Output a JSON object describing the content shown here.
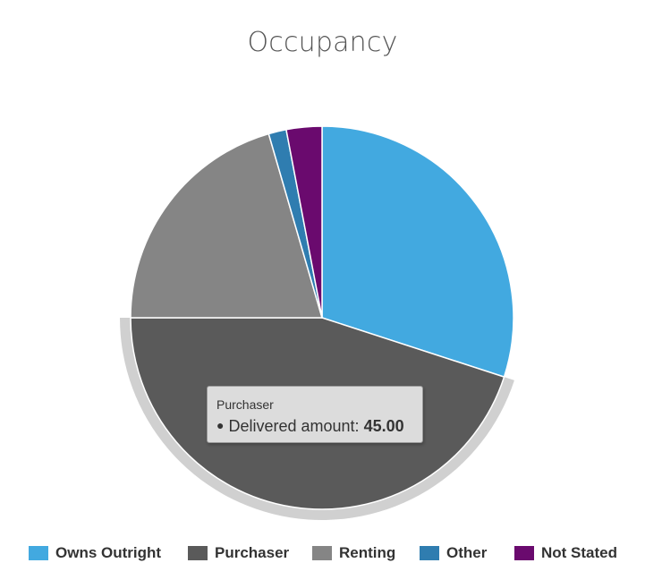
{
  "chart_data": {
    "type": "pie",
    "title": "Occupancy",
    "series_name": "Delivered amount",
    "categories": [
      "Owns Outright",
      "Purchaser",
      "Renting",
      "Other",
      "Not Stated"
    ],
    "values": [
      30.0,
      45.0,
      20.5,
      1.5,
      3.0
    ],
    "colors": [
      "#42a9e0",
      "#5a5a5a",
      "#858585",
      "#2f7db0",
      "#6a0a6e"
    ],
    "start_angle_deg": 0,
    "direction": "clockwise",
    "highlighted": "Purchaser",
    "legend_position": "bottom",
    "tooltip": {
      "title": "Purchaser",
      "label": "Delivered amount:",
      "value": "45.00"
    }
  }
}
